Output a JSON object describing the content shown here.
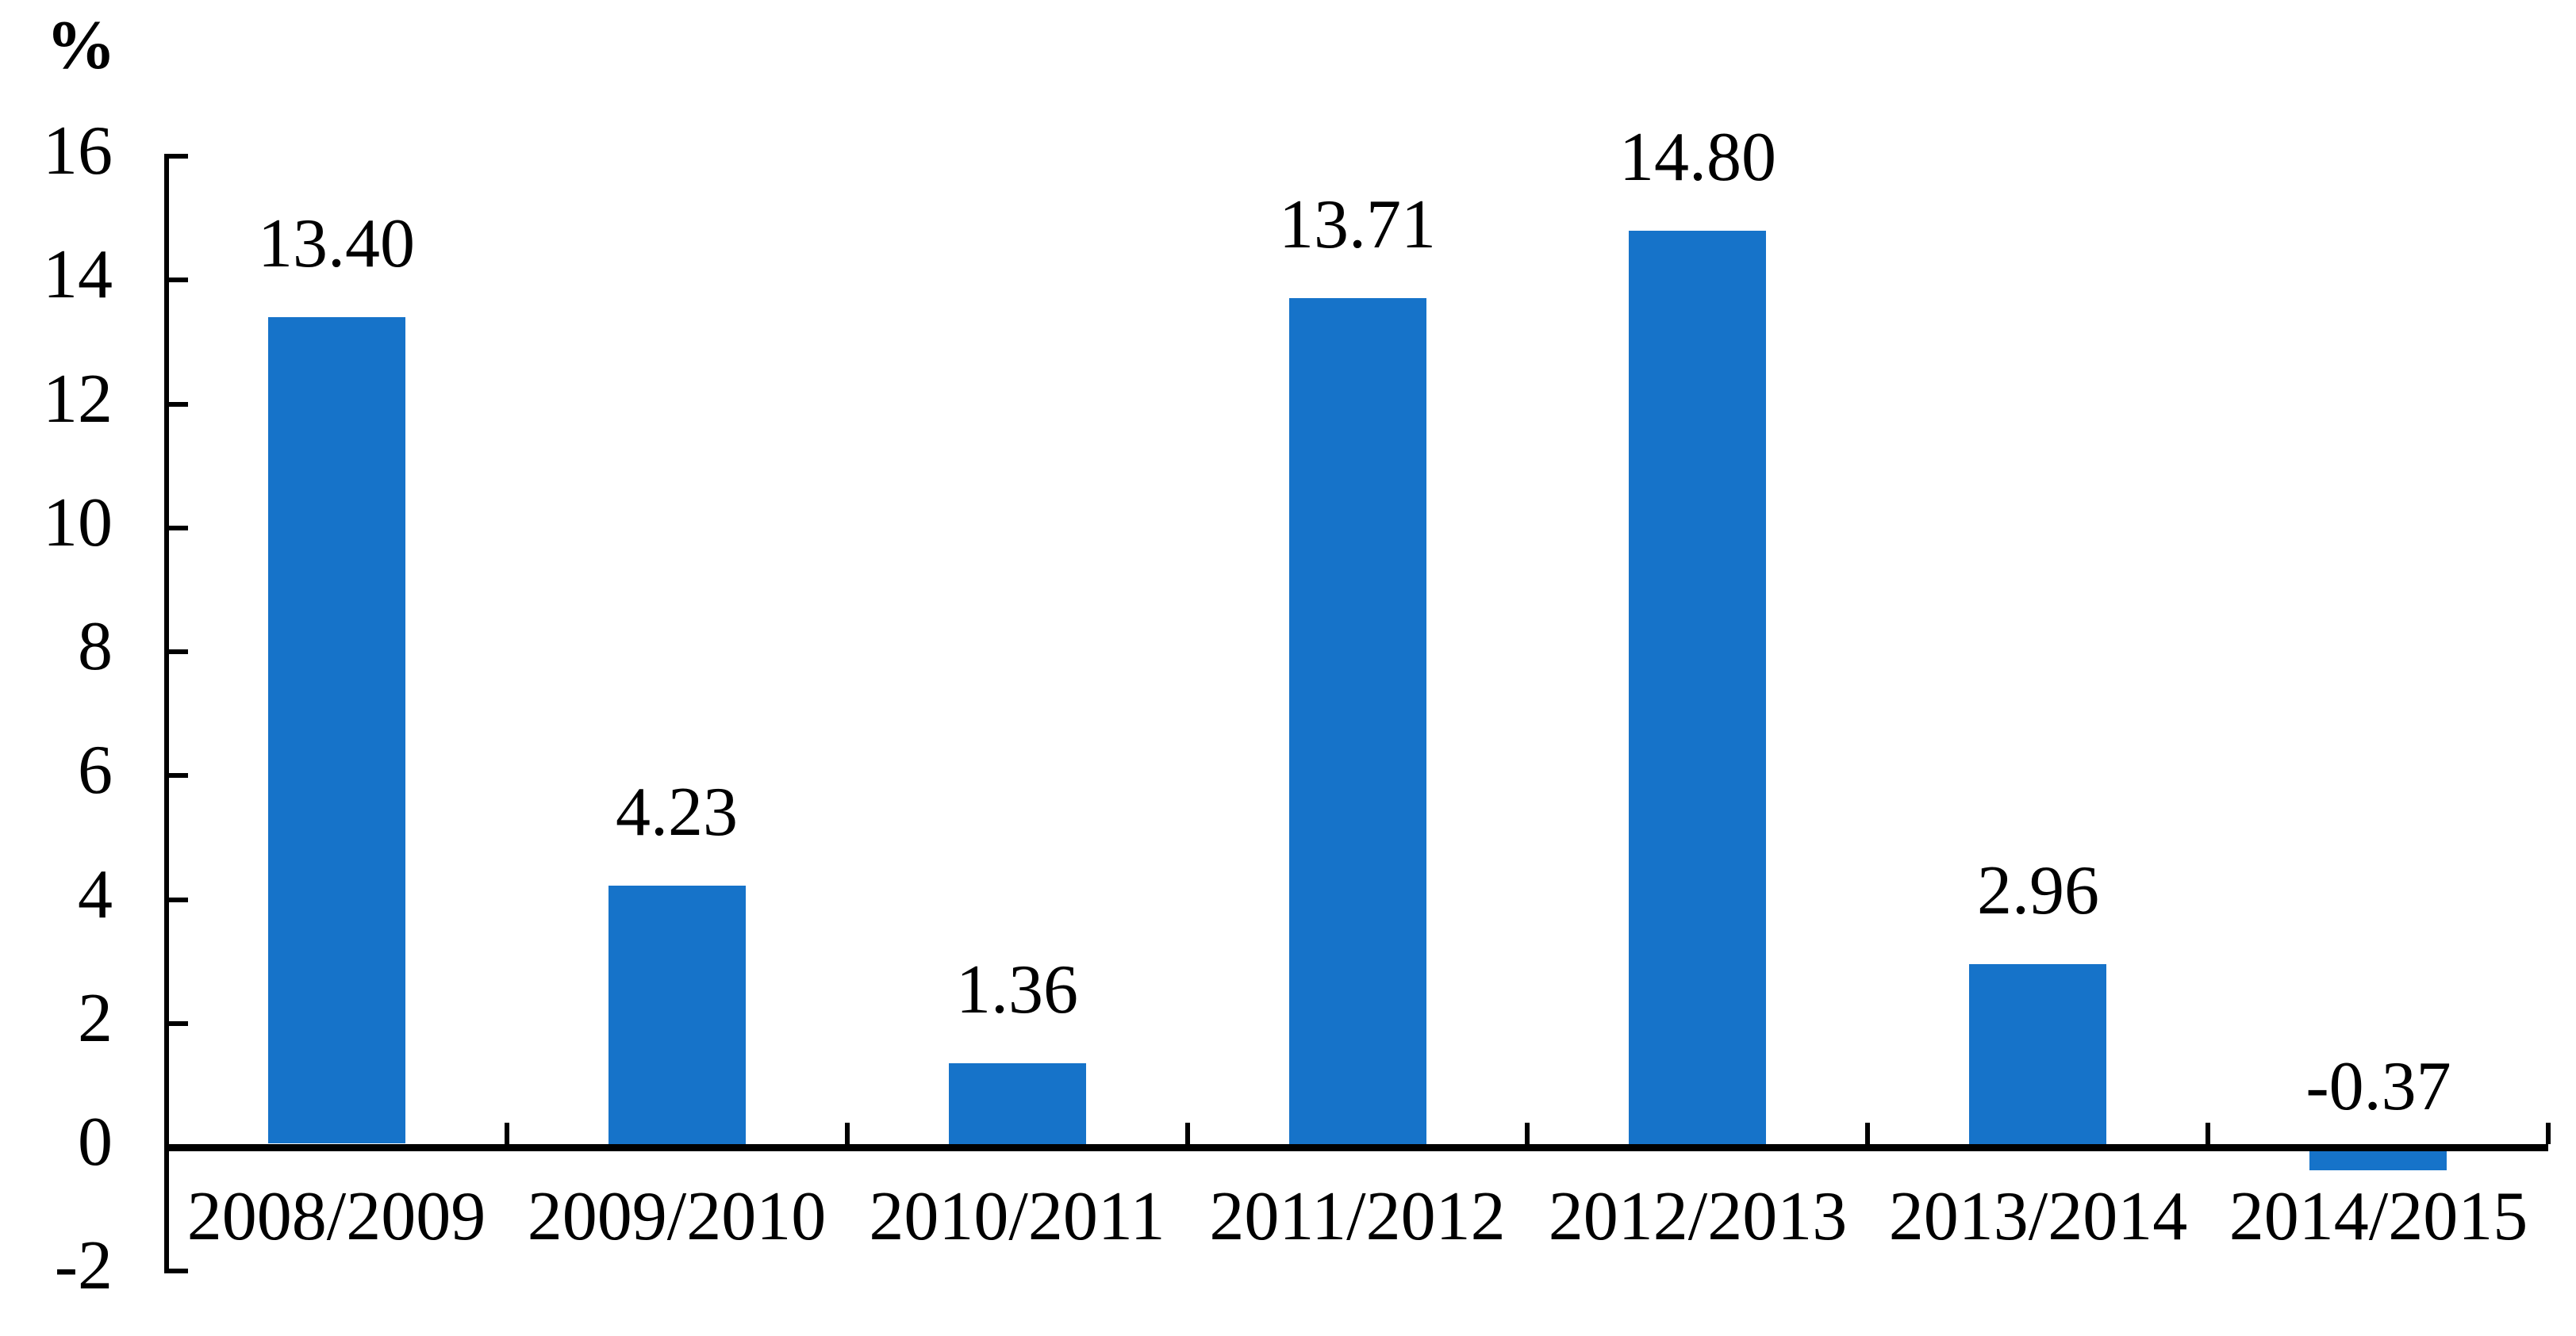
{
  "chart_data": {
    "type": "bar",
    "title": "",
    "unit_label": "%",
    "categories": [
      "2008/2009",
      "2009/2010",
      "2010/2011",
      "2011/2012",
      "2012/2013",
      "2013/2014",
      "2014/2015"
    ],
    "values": [
      13.4,
      4.23,
      1.36,
      13.71,
      14.8,
      2.96,
      -0.37
    ],
    "value_labels": [
      "13.40",
      "4.23",
      "1.36",
      "13.71",
      "14.80",
      "2.96",
      "-0.37"
    ],
    "series_name": "",
    "xlabel": "",
    "ylabel": "%",
    "y_ticks": [
      16,
      14,
      12,
      10,
      8,
      6,
      4,
      2,
      0,
      "-2"
    ],
    "y_tick_values": [
      16,
      14,
      12,
      10,
      8,
      6,
      4,
      2,
      0,
      -2
    ],
    "ylim": [
      -2,
      16
    ],
    "grid": false,
    "legend_position": "none",
    "bar_color": "#1673C9",
    "axis_color": "#000000",
    "text_color": "#000000",
    "background_color": "#ffffff",
    "value_label_position": "above-bar",
    "tick_style": "inside"
  }
}
